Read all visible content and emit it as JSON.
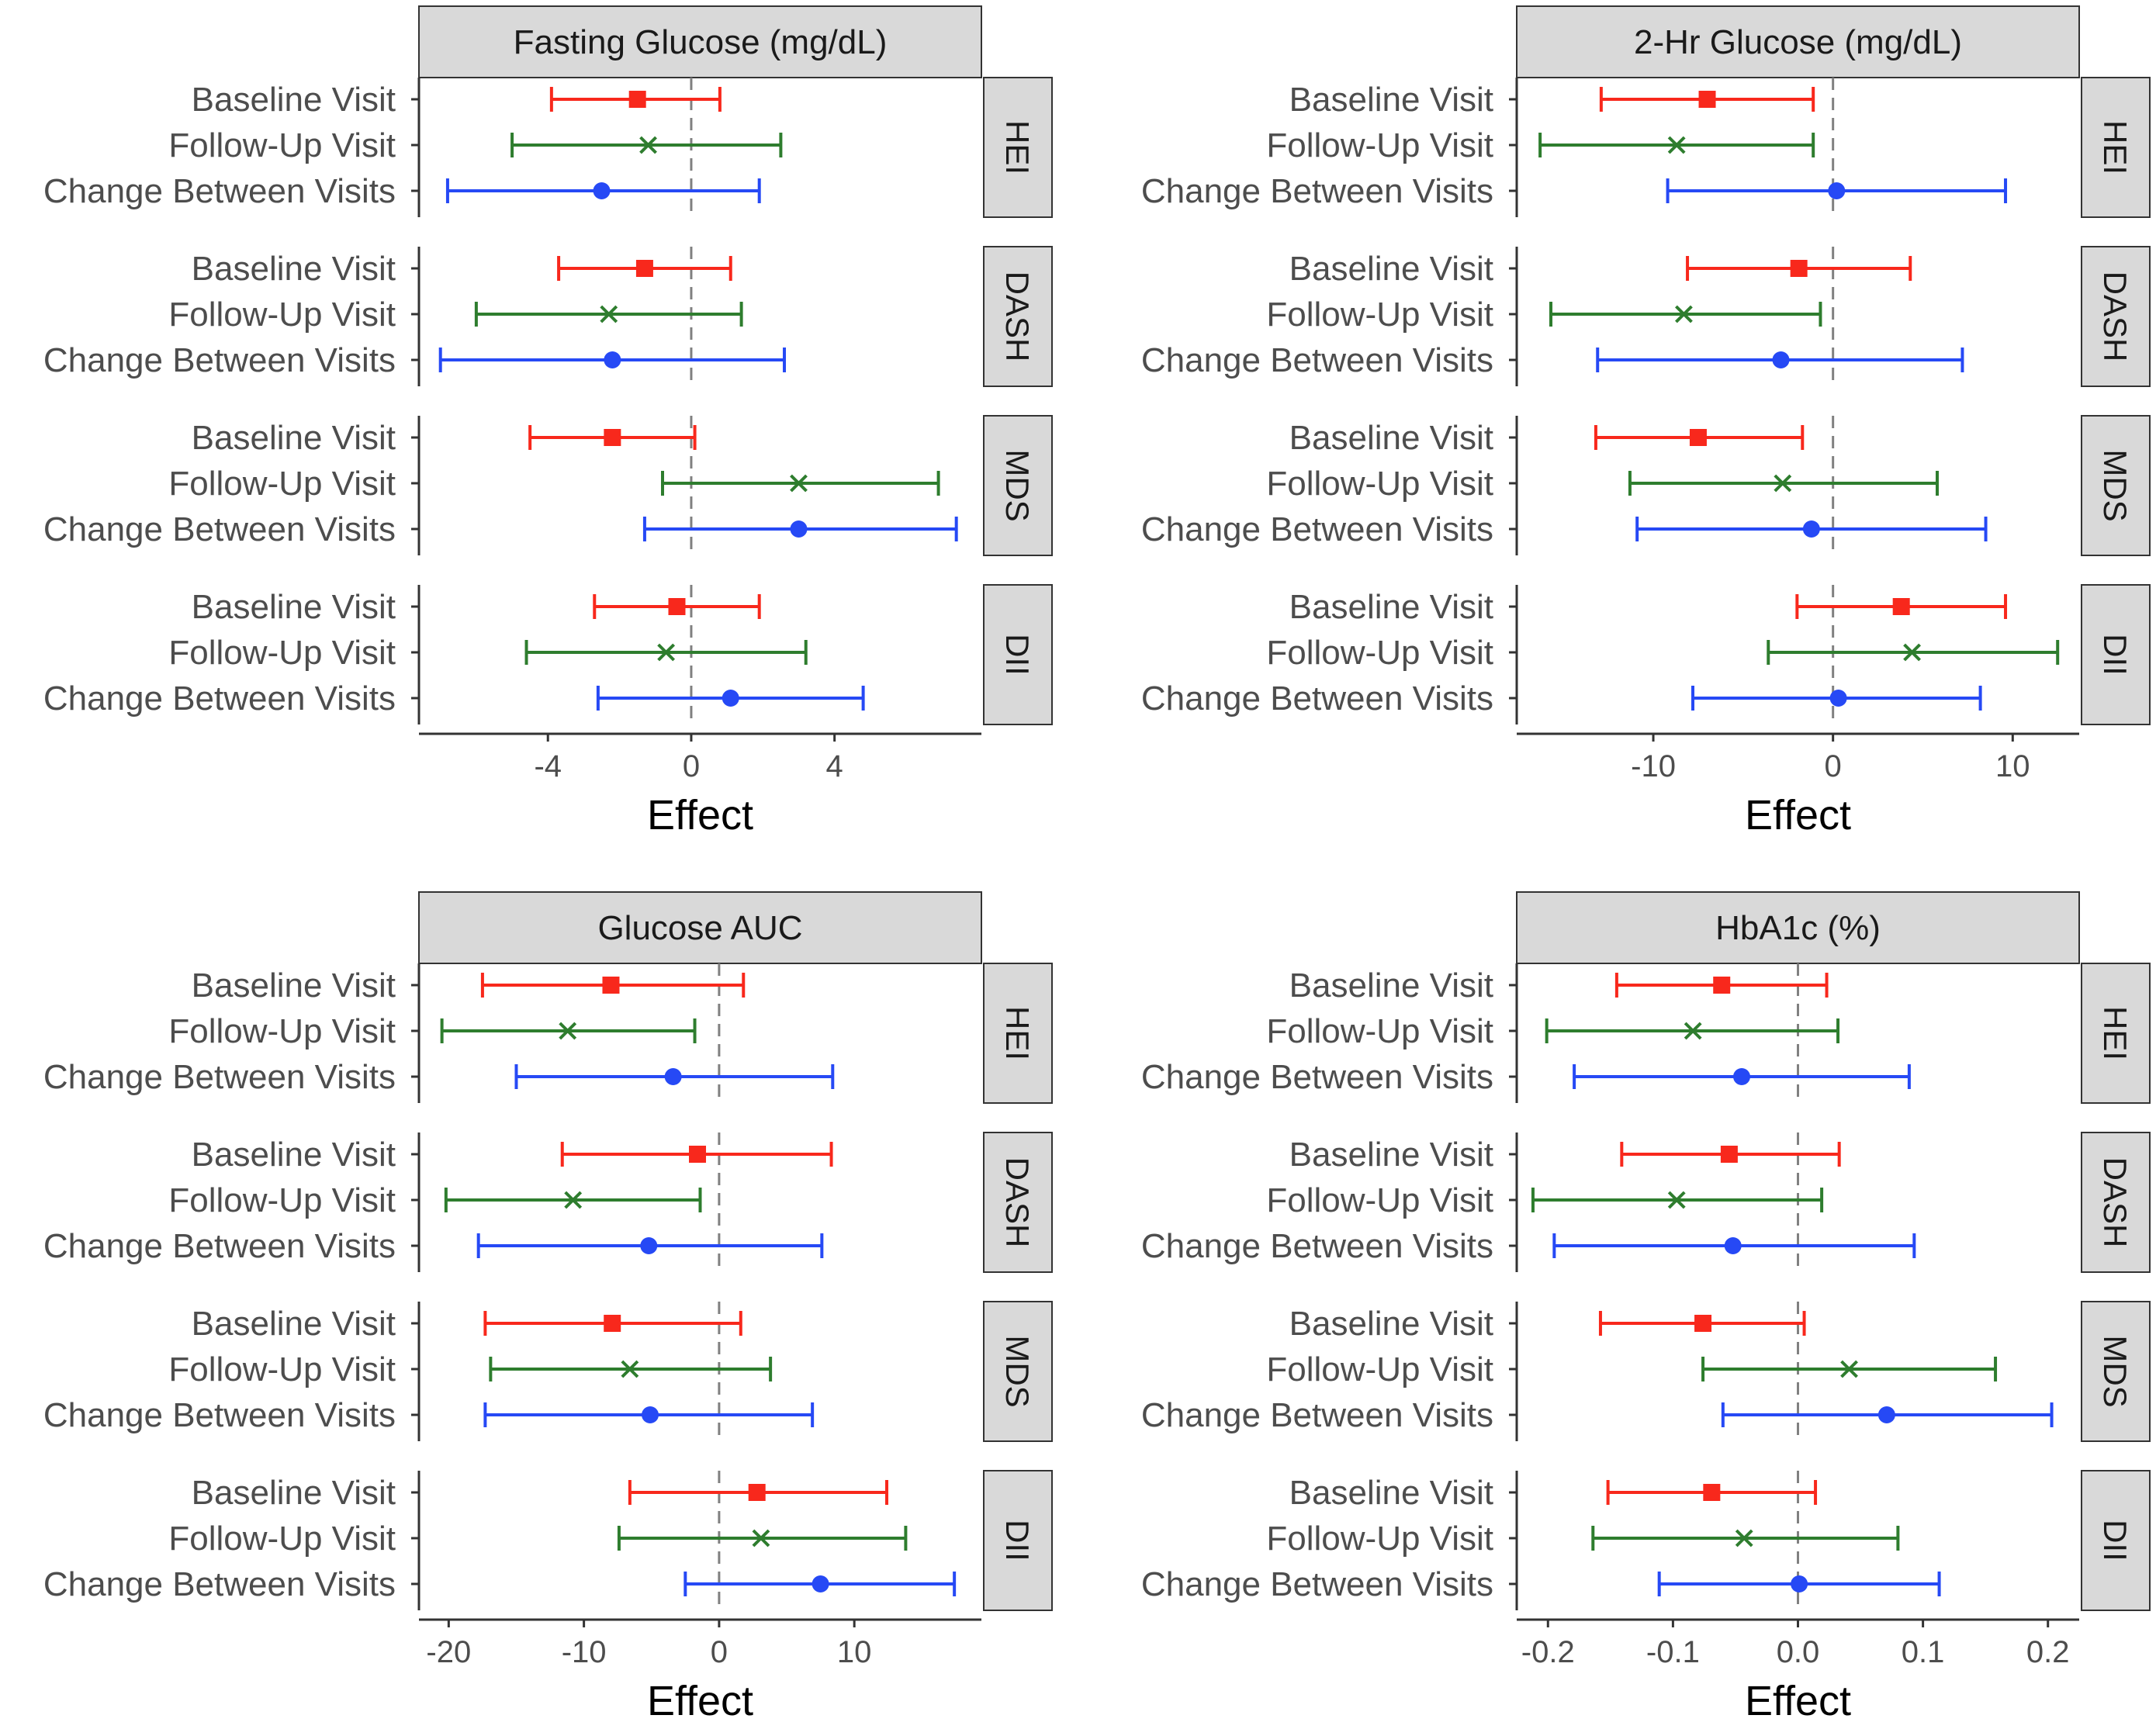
{
  "figure": {
    "row_labels": [
      "Baseline Visit",
      "Follow-Up Visit",
      "Change Between Visits"
    ],
    "facets": [
      "HEI",
      "DASH",
      "MDS",
      "DII"
    ]
  },
  "colors": {
    "baseline": "#f8281c",
    "followup": "#2e7d2e",
    "change": "#2649f5",
    "strip_fill": "#d9d9d9",
    "reference_line": "#808080",
    "axis_line": "#333333"
  },
  "chart_data": [
    {
      "type": "forest",
      "title": "Fasting Glucose (mg/dL)",
      "xlabel": "Effect",
      "xlim": [
        -7.6,
        8.1
      ],
      "xticks": [
        -4,
        0,
        4
      ],
      "tick_labels": [
        "-4",
        "0",
        "4"
      ],
      "reference": 0,
      "facets": [
        {
          "name": "HEI",
          "rows": [
            {
              "label": "Baseline Visit",
              "est": -1.5,
              "lo": -3.9,
              "hi": 0.8
            },
            {
              "label": "Follow-Up Visit",
              "est": -1.2,
              "lo": -5.0,
              "hi": 2.5
            },
            {
              "label": "Change Between Visits",
              "est": -2.5,
              "lo": -6.8,
              "hi": 1.9
            }
          ]
        },
        {
          "name": "DASH",
          "rows": [
            {
              "label": "Baseline Visit",
              "est": -1.3,
              "lo": -3.7,
              "hi": 1.1
            },
            {
              "label": "Follow-Up Visit",
              "est": -2.3,
              "lo": -6.0,
              "hi": 1.4
            },
            {
              "label": "Change Between Visits",
              "est": -2.2,
              "lo": -7.0,
              "hi": 2.6
            }
          ]
        },
        {
          "name": "MDS",
          "rows": [
            {
              "label": "Baseline Visit",
              "est": -2.2,
              "lo": -4.5,
              "hi": 0.1
            },
            {
              "label": "Follow-Up Visit",
              "est": 3.0,
              "lo": -0.8,
              "hi": 6.9
            },
            {
              "label": "Change Between Visits",
              "est": 3.0,
              "lo": -1.3,
              "hi": 7.4
            }
          ]
        },
        {
          "name": "DII",
          "rows": [
            {
              "label": "Baseline Visit",
              "est": -0.4,
              "lo": -2.7,
              "hi": 1.9
            },
            {
              "label": "Follow-Up Visit",
              "est": -0.7,
              "lo": -4.6,
              "hi": 3.2
            },
            {
              "label": "Change Between Visits",
              "est": 1.1,
              "lo": -2.6,
              "hi": 4.8
            }
          ]
        }
      ]
    },
    {
      "type": "forest",
      "title": "2-Hr Glucose (mg/dL)",
      "xlabel": "Effect",
      "xlim": [
        -17.6,
        13.7
      ],
      "xticks": [
        -10,
        0,
        10
      ],
      "tick_labels": [
        "-10",
        "0",
        "10"
      ],
      "reference": 0,
      "facets": [
        {
          "name": "HEI",
          "rows": [
            {
              "label": "Baseline Visit",
              "est": -7.0,
              "lo": -12.9,
              "hi": -1.1
            },
            {
              "label": "Follow-Up Visit",
              "est": -8.7,
              "lo": -16.3,
              "hi": -1.1
            },
            {
              "label": "Change Between Visits",
              "est": 0.2,
              "lo": -9.2,
              "hi": 9.6
            }
          ]
        },
        {
          "name": "DASH",
          "rows": [
            {
              "label": "Baseline Visit",
              "est": -1.9,
              "lo": -8.1,
              "hi": 4.3
            },
            {
              "label": "Follow-Up Visit",
              "est": -8.3,
              "lo": -15.7,
              "hi": -0.7
            },
            {
              "label": "Change Between Visits",
              "est": -2.9,
              "lo": -13.1,
              "hi": 7.2
            }
          ]
        },
        {
          "name": "MDS",
          "rows": [
            {
              "label": "Baseline Visit",
              "est": -7.5,
              "lo": -13.2,
              "hi": -1.7
            },
            {
              "label": "Follow-Up Visit",
              "est": -2.8,
              "lo": -11.3,
              "hi": 5.8
            },
            {
              "label": "Change Between Visits",
              "est": -1.2,
              "lo": -10.9,
              "hi": 8.5
            }
          ]
        },
        {
          "name": "DII",
          "rows": [
            {
              "label": "Baseline Visit",
              "est": 3.8,
              "lo": -2.0,
              "hi": 9.6
            },
            {
              "label": "Follow-Up Visit",
              "est": 4.4,
              "lo": -3.6,
              "hi": 12.5
            },
            {
              "label": "Change Between Visits",
              "est": 0.3,
              "lo": -7.8,
              "hi": 8.2
            }
          ]
        }
      ]
    },
    {
      "type": "forest",
      "title": "Glucose AUC",
      "xlabel": "Effect",
      "xlim": [
        -22.2,
        19.4
      ],
      "xticks": [
        -20,
        -10,
        0,
        10
      ],
      "tick_labels": [
        "-20",
        "-10",
        "0",
        "10"
      ],
      "reference": 0,
      "facets": [
        {
          "name": "HEI",
          "rows": [
            {
              "label": "Baseline Visit",
              "est": -8.0,
              "lo": -17.5,
              "hi": 1.8
            },
            {
              "label": "Follow-Up Visit",
              "est": -11.2,
              "lo": -20.5,
              "hi": -1.8
            },
            {
              "label": "Change Between Visits",
              "est": -3.4,
              "lo": -15.0,
              "hi": 8.4
            }
          ]
        },
        {
          "name": "DASH",
          "rows": [
            {
              "label": "Baseline Visit",
              "est": -1.6,
              "lo": -11.6,
              "hi": 8.3
            },
            {
              "label": "Follow-Up Visit",
              "est": -10.8,
              "lo": -20.2,
              "hi": -1.4
            },
            {
              "label": "Change Between Visits",
              "est": -5.2,
              "lo": -17.8,
              "hi": 7.6
            }
          ]
        },
        {
          "name": "MDS",
          "rows": [
            {
              "label": "Baseline Visit",
              "est": -7.9,
              "lo": -17.3,
              "hi": 1.6
            },
            {
              "label": "Follow-Up Visit",
              "est": -6.6,
              "lo": -16.9,
              "hi": 3.8
            },
            {
              "label": "Change Between Visits",
              "est": -5.1,
              "lo": -17.3,
              "hi": 6.9
            }
          ]
        },
        {
          "name": "DII",
          "rows": [
            {
              "label": "Baseline Visit",
              "est": 2.8,
              "lo": -6.6,
              "hi": 12.4
            },
            {
              "label": "Follow-Up Visit",
              "est": 3.1,
              "lo": -7.4,
              "hi": 13.8
            },
            {
              "label": "Change Between Visits",
              "est": 7.5,
              "lo": -2.5,
              "hi": 17.4
            }
          ]
        }
      ]
    },
    {
      "type": "forest",
      "title": "HbA1c (%)",
      "xlabel": "Effect",
      "xlim": [
        -0.225,
        0.225
      ],
      "xticks": [
        -0.2,
        -0.1,
        0.0,
        0.1,
        0.2
      ],
      "tick_labels": [
        "-0.2",
        "-0.1",
        "0.0",
        "0.1",
        "0.2"
      ],
      "reference": 0,
      "facets": [
        {
          "name": "HEI",
          "rows": [
            {
              "label": "Baseline Visit",
              "est": -0.061,
              "lo": -0.145,
              "hi": 0.023
            },
            {
              "label": "Follow-Up Visit",
              "est": -0.084,
              "lo": -0.201,
              "hi": 0.032
            },
            {
              "label": "Change Between Visits",
              "est": -0.045,
              "lo": -0.179,
              "hi": 0.089
            }
          ]
        },
        {
          "name": "DASH",
          "rows": [
            {
              "label": "Baseline Visit",
              "est": -0.055,
              "lo": -0.141,
              "hi": 0.033
            },
            {
              "label": "Follow-Up Visit",
              "est": -0.097,
              "lo": -0.212,
              "hi": 0.019
            },
            {
              "label": "Change Between Visits",
              "est": -0.052,
              "lo": -0.195,
              "hi": 0.093
            }
          ]
        },
        {
          "name": "MDS",
          "rows": [
            {
              "label": "Baseline Visit",
              "est": -0.076,
              "lo": -0.158,
              "hi": 0.005
            },
            {
              "label": "Follow-Up Visit",
              "est": 0.041,
              "lo": -0.076,
              "hi": 0.158
            },
            {
              "label": "Change Between Visits",
              "est": 0.071,
              "lo": -0.06,
              "hi": 0.203
            }
          ]
        },
        {
          "name": "DII",
          "rows": [
            {
              "label": "Baseline Visit",
              "est": -0.069,
              "lo": -0.152,
              "hi": 0.014
            },
            {
              "label": "Follow-Up Visit",
              "est": -0.043,
              "lo": -0.164,
              "hi": 0.08
            },
            {
              "label": "Change Between Visits",
              "est": 0.001,
              "lo": -0.111,
              "hi": 0.113
            }
          ]
        }
      ]
    }
  ]
}
